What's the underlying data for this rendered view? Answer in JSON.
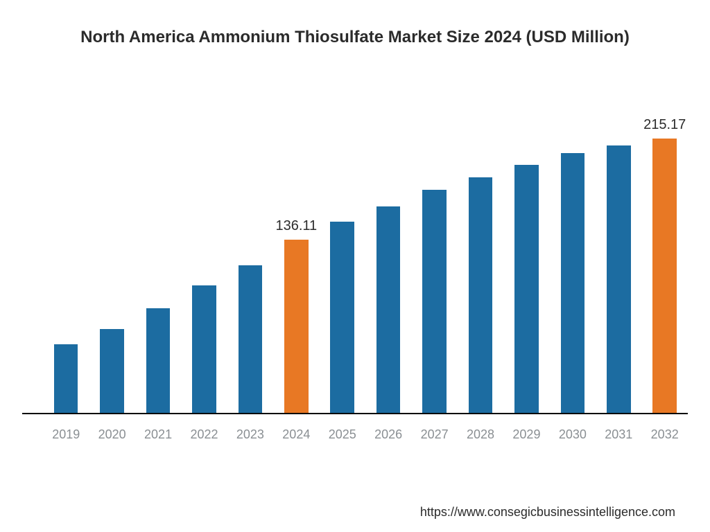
{
  "chart": {
    "type": "bar",
    "title": "North America Ammonium Thiosulfate Market Size 2024 (USD Million)",
    "title_fontsize": 24,
    "title_color": "#2b2b2b",
    "background_color": "#ffffff",
    "baseline_color": "#000000",
    "xaxis_label_color": "#8a8f93",
    "xaxis_label_fontsize": 18,
    "value_label_fontsize": 20,
    "primary_bar_color": "#1c6ca1",
    "highlight_bar_color": "#e87824",
    "bar_width_ratio": 0.52,
    "ylim": [
      0,
      260
    ],
    "categories": [
      "2019",
      "2020",
      "2021",
      "2022",
      "2023",
      "2024",
      "2025",
      "2026",
      "2027",
      "2028",
      "2029",
      "2030",
      "2031",
      "2032"
    ],
    "values": [
      54,
      66,
      82,
      100,
      116,
      136.11,
      150,
      162,
      175,
      185,
      195,
      204,
      210,
      215.17
    ],
    "highlight_indices": [
      5,
      13
    ],
    "value_labels": {
      "5": "136.11",
      "13": "215.17"
    }
  },
  "source_url": "https://www.consegicbusinessintelligence.com"
}
